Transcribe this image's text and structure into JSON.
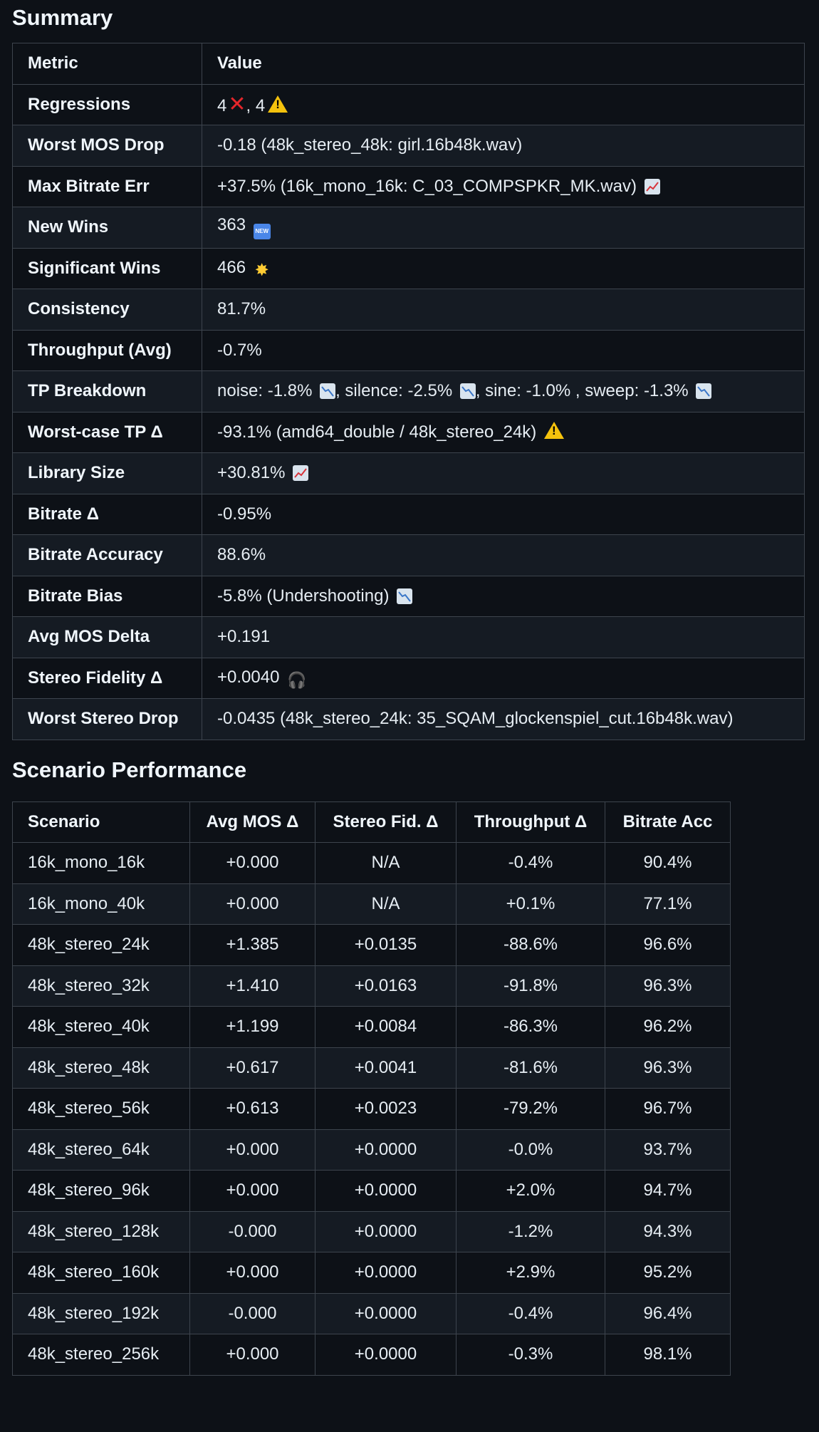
{
  "summary": {
    "heading": "Summary",
    "col_metric": "Metric",
    "col_value": "Value",
    "rows": [
      {
        "metric": "Regressions",
        "value_a": "4",
        "value_b": ", 4",
        "icons": [
          "cross-mark-icon",
          "warning-icon"
        ]
      },
      {
        "metric": "Worst MOS Drop",
        "value": "-0.18 (48k_stereo_48k: girl.16b48k.wav)"
      },
      {
        "metric": "Max Bitrate Err",
        "value": "+37.5% (16k_mono_16k: C_03_COMPSPKR_MK.wav)",
        "icon": "chart-increasing-icon"
      },
      {
        "metric": "New Wins",
        "value": "363",
        "icon": "new-badge-icon",
        "icon_text": "NEW"
      },
      {
        "metric": "Significant Wins",
        "value": "466",
        "icon": "glowing-star-icon"
      },
      {
        "metric": "Consistency",
        "value": "81.7%"
      },
      {
        "metric": "Throughput (Avg)",
        "value": "-0.7%"
      },
      {
        "metric": "TP Breakdown",
        "parts": [
          "noise: -1.8%",
          ", silence: -2.5%",
          ", sine: -1.0% , sweep: -1.3%"
        ],
        "icon": "chart-decreasing-icon"
      },
      {
        "metric": "Worst-case TP Δ",
        "value": "-93.1% (amd64_double / 48k_stereo_24k)",
        "icon": "warning-icon"
      },
      {
        "metric": "Library Size",
        "value": "+30.81%",
        "icon": "chart-increasing-icon"
      },
      {
        "metric": "Bitrate Δ",
        "value": "-0.95%"
      },
      {
        "metric": "Bitrate Accuracy",
        "value": "88.6%"
      },
      {
        "metric": "Bitrate Bias",
        "value": "-5.8% (Undershooting)",
        "icon": "chart-decreasing-icon"
      },
      {
        "metric": "Avg MOS Delta",
        "value": "+0.191"
      },
      {
        "metric": "Stereo Fidelity Δ",
        "value": "+0.0040",
        "icon": "headphones-icon"
      },
      {
        "metric": "Worst Stereo Drop",
        "value": "-0.0435 (48k_stereo_24k: 35_SQAM_glockenspiel_cut.16b48k.wav)"
      }
    ]
  },
  "scenario": {
    "heading": "Scenario Performance",
    "columns": [
      "Scenario",
      "Avg MOS Δ",
      "Stereo Fid. Δ",
      "Throughput Δ",
      "Bitrate Acc"
    ],
    "rows": [
      [
        "16k_mono_16k",
        "+0.000",
        "N/A",
        "-0.4%",
        "90.4%"
      ],
      [
        "16k_mono_40k",
        "+0.000",
        "N/A",
        "+0.1%",
        "77.1%"
      ],
      [
        "48k_stereo_24k",
        "+1.385",
        "+0.0135",
        "-88.6%",
        "96.6%"
      ],
      [
        "48k_stereo_32k",
        "+1.410",
        "+0.0163",
        "-91.8%",
        "96.3%"
      ],
      [
        "48k_stereo_40k",
        "+1.199",
        "+0.0084",
        "-86.3%",
        "96.2%"
      ],
      [
        "48k_stereo_48k",
        "+0.617",
        "+0.0041",
        "-81.6%",
        "96.3%"
      ],
      [
        "48k_stereo_56k",
        "+0.613",
        "+0.0023",
        "-79.2%",
        "96.7%"
      ],
      [
        "48k_stereo_64k",
        "+0.000",
        "+0.0000",
        "-0.0%",
        "93.7%"
      ],
      [
        "48k_stereo_96k",
        "+0.000",
        "+0.0000",
        "+2.0%",
        "94.7%"
      ],
      [
        "48k_stereo_128k",
        "-0.000",
        "+0.0000",
        "-1.2%",
        "94.3%"
      ],
      [
        "48k_stereo_160k",
        "+0.000",
        "+0.0000",
        "+2.9%",
        "95.2%"
      ],
      [
        "48k_stereo_192k",
        "-0.000",
        "+0.0000",
        "-0.4%",
        "96.4%"
      ],
      [
        "48k_stereo_256k",
        "+0.000",
        "+0.0000",
        "-0.3%",
        "98.1%"
      ]
    ]
  }
}
